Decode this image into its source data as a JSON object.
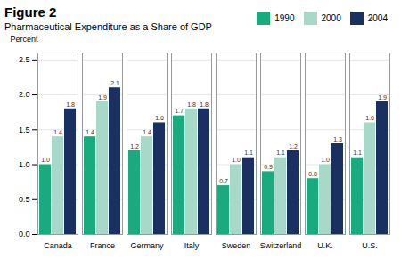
{
  "chart_data": {
    "type": "bar",
    "title": "Figure 2",
    "subtitle": "Pharmaceutical Expenditure as a Share of GDP",
    "y_label": "Percent",
    "categories": [
      "Canada",
      "France",
      "Germany",
      "Italy",
      "Sweden",
      "Switzerland",
      "U.K.",
      "U.S."
    ],
    "series": [
      {
        "name": "1990",
        "color": "#1aaa80",
        "values": [
          1.0,
          1.4,
          1.2,
          1.7,
          0.7,
          0.9,
          0.8,
          1.1
        ],
        "value_labels": [
          "1.0",
          "1.4",
          "1.2",
          "1.7",
          "0.7",
          "0.9",
          "0.8",
          "1.1"
        ]
      },
      {
        "name": "2000",
        "color": "#a8d8c8",
        "values": [
          1.4,
          1.9,
          1.4,
          1.8,
          1.0,
          1.1,
          1.0,
          1.6
        ],
        "value_labels": [
          "1.4",
          "1.9",
          "1.4",
          "1.8",
          "1.0",
          "1.1",
          "1.0",
          "1.6"
        ]
      },
      {
        "name": "2004",
        "color": "#1a3060",
        "values": [
          1.8,
          2.1,
          1.6,
          1.8,
          1.1,
          1.2,
          1.3,
          1.9
        ],
        "value_labels": [
          "1.8",
          "2.1",
          "1.6",
          "1.8",
          "1.1",
          "1.2",
          "1.3",
          "1.9"
        ]
      }
    ],
    "ylim": [
      0.0,
      2.6
    ],
    "yticks": [
      {
        "value": 0,
        "label": "0.0"
      },
      0.5,
      {
        "value": 1,
        "label": "1.0"
      },
      1.5,
      {
        "value": 2,
        "label": "2.0"
      },
      2.5
    ],
    "grid": true,
    "legend": "upper right",
    "data_labels": true
  }
}
